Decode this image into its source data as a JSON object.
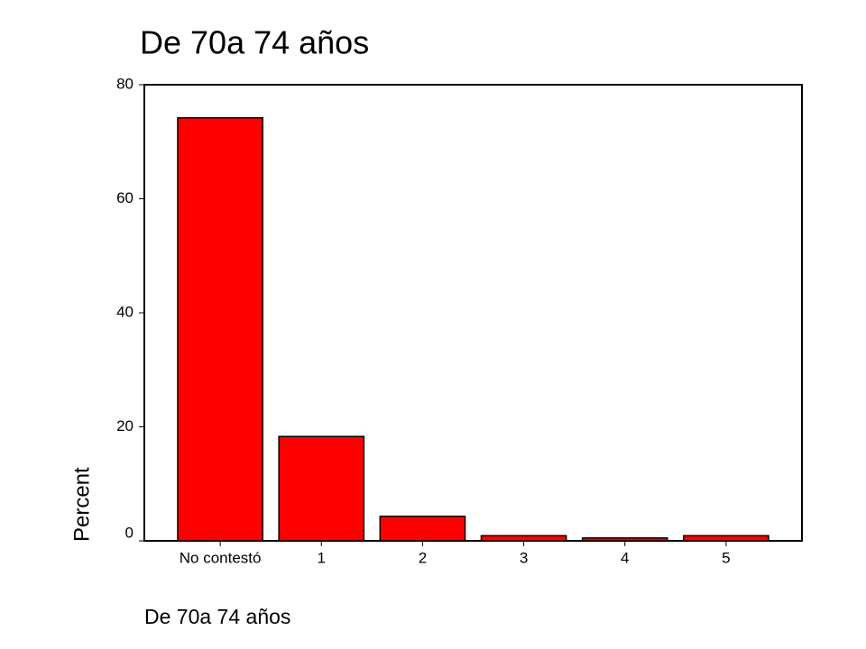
{
  "chart_data": {
    "type": "bar",
    "title": "De 70a 74 años",
    "x_label": "De 70a 74 años",
    "y_label": "Percent",
    "categories": [
      "No contestó",
      "1",
      "2",
      "3",
      "4",
      "5"
    ],
    "values": [
      74.2,
      18.3,
      4.3,
      0.9,
      0.5,
      0.9
    ],
    "color": "#ff0000",
    "ylim": [
      0,
      80
    ],
    "yticks": [
      0,
      20,
      40,
      60,
      80
    ],
    "grid": false
  }
}
